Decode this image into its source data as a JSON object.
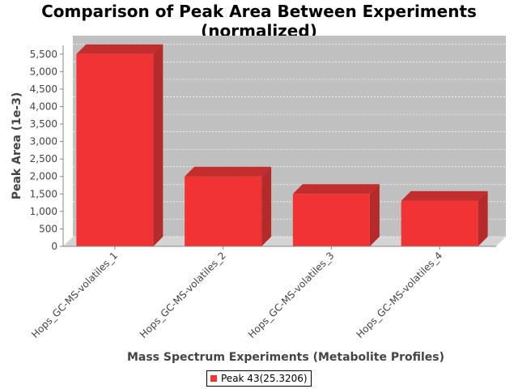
{
  "chart_data": {
    "type": "bar",
    "title": [
      "Comparison of Peak Area Between Experiments",
      "(normalized)"
    ],
    "xlabel": "Mass Spectrum Experiments (Metabolite Profiles)",
    "ylabel": "Peak Area (1e-3)",
    "categories": [
      "Hops_GC-MS-volatiles_1",
      "Hops_GC-MS-volatiles_2",
      "Hops_GC-MS-volatiles_3",
      "Hops_GC-MS-volatiles_4"
    ],
    "series": [
      {
        "name": "Peak 43(25.3206)",
        "values": [
          5500,
          2000,
          1500,
          1300
        ],
        "color": "#f23333"
      }
    ],
    "ylim": [
      0,
      5750
    ],
    "yticks": [
      0,
      500,
      1000,
      1500,
      2000,
      2500,
      3000,
      3500,
      4000,
      4500,
      5000,
      5500
    ],
    "ytick_labels": [
      "0",
      "500",
      "1,000",
      "1,500",
      "2,000",
      "2,500",
      "3,000",
      "3,500",
      "4,000",
      "4,500",
      "5,000",
      "5,500"
    ],
    "grid": true,
    "legend": "bottom",
    "plot_background": "#c0c0c0",
    "style": "3d"
  }
}
